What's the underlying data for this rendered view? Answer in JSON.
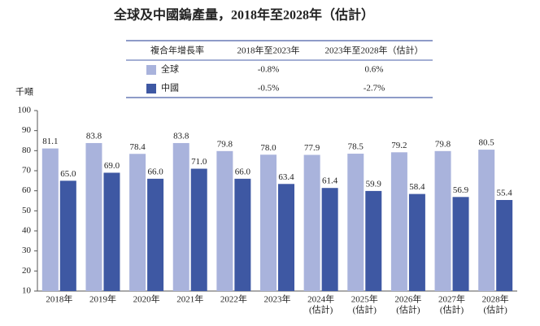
{
  "chart_data": {
    "type": "bar",
    "title": "全球及中國鎢產量，2018年至2028年（估計）",
    "y_label": "千噸",
    "categories": [
      [
        "2018年"
      ],
      [
        "2019年"
      ],
      [
        "2020年"
      ],
      [
        "2021年"
      ],
      [
        "2022年"
      ],
      [
        "2023年"
      ],
      [
        "2024年",
        "(估計)"
      ],
      [
        "2025年",
        "(估計)"
      ],
      [
        "2026年",
        "(估計)"
      ],
      [
        "2027年",
        "(估計)"
      ],
      [
        "2028年",
        "(估計)"
      ]
    ],
    "series": [
      {
        "name": "全球",
        "color": "#a9b3dc",
        "values": [
          81.1,
          83.8,
          78.4,
          83.8,
          79.8,
          78.0,
          77.9,
          78.5,
          79.2,
          79.8,
          80.5
        ],
        "value_labels": [
          "81.1",
          "83.8",
          "78.4",
          "83.8",
          "79.8",
          "78.0",
          "77.9",
          "78.5",
          "79.2",
          "79.8",
          "80.5"
        ]
      },
      {
        "name": "中國",
        "color": "#3e58a3",
        "values": [
          65.0,
          69.0,
          66.0,
          71.0,
          66.0,
          63.4,
          61.4,
          59.9,
          58.4,
          56.9,
          55.4
        ],
        "value_labels": [
          "65.0",
          "69.0",
          "66.0",
          "71.0",
          "66.0",
          "63.4",
          "61.4",
          "59.9",
          "58.4",
          "56.9",
          "55.4"
        ]
      }
    ],
    "ylim": [
      10,
      100
    ],
    "yticks": [
      10,
      20,
      30,
      40,
      50,
      60,
      70,
      80,
      90,
      100
    ],
    "cagr_table": {
      "header": [
        "複合年增長率",
        "2018年至2023年",
        "2023年至2028年（估計）"
      ],
      "rows": [
        [
          "-0.8%",
          "0.6%"
        ],
        [
          "-0.5%",
          "-2.7%"
        ]
      ]
    }
  }
}
